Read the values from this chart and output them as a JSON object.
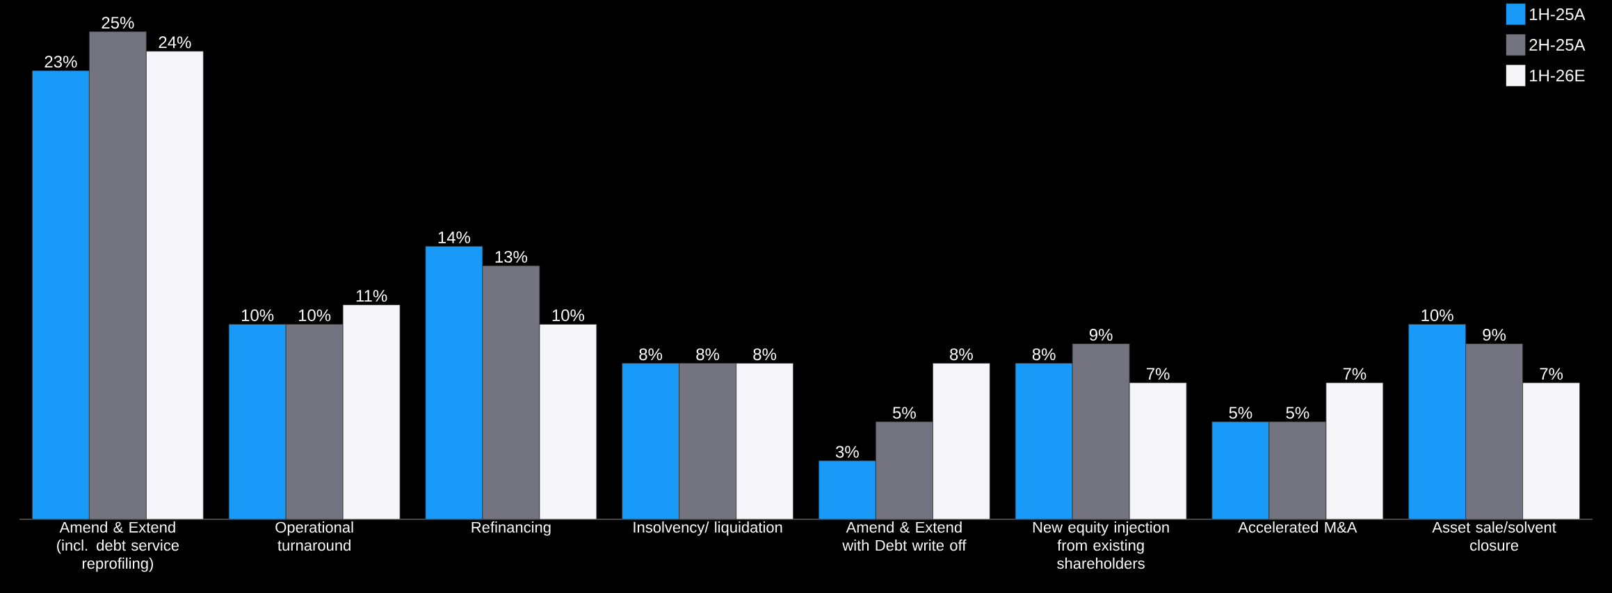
{
  "chart_data": {
    "type": "bar",
    "categories": [
      "Amend & Extend (incl. debt service reprofiling)",
      "Operational turnaround",
      "Refinancing",
      "Insolvency/ liquidation",
      "Amend & Extend with Debt write off",
      "New equity injection from existing shareholders",
      "Accelerated M&A",
      "Asset sale/solvent closure"
    ],
    "series": [
      {
        "name": "1H-25A",
        "color": "#1a9af8",
        "values": [
          23,
          10,
          14,
          8,
          3,
          8,
          5,
          10
        ],
        "value_labels": [
          "23%",
          "10%",
          "14%",
          "8%",
          "3%",
          "8%",
          "5%",
          "10%"
        ]
      },
      {
        "name": "2H-25A",
        "color": "#747480",
        "values": [
          25,
          10,
          13,
          8,
          5,
          9,
          5,
          9
        ],
        "value_labels": [
          "25%",
          "10%",
          "13%",
          "8%",
          "5%",
          "9%",
          "5%",
          "9%"
        ]
      },
      {
        "name": "1H-26E",
        "color": "#f6f6fa",
        "values": [
          24,
          11,
          10,
          8,
          8,
          7,
          7,
          7
        ],
        "value_labels": [
          "24%",
          "11%",
          "10%",
          "8%",
          "8%",
          "7%",
          "7%",
          "7%"
        ]
      }
    ],
    "legend": "top right"
  }
}
